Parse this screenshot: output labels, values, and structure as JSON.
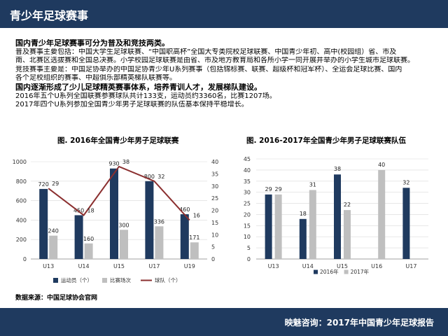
{
  "header": {
    "title": "青少年足球赛事"
  },
  "body": {
    "lines": [
      {
        "text": "国内青少年足球赛事可分为普及和竞技两类。",
        "bold": true
      },
      {
        "text": "普及赛事主要包括：中国大学生足球联赛、“中国职高杯”全国大专类院校足球联赛、中国青少年初、高中(校园组）省、市及",
        "bold": false
      },
      {
        "text": "南、北赛区选拔赛和全国总决赛。小学校园足球联赛是由省、市及地方教育局和各所小学一同开展并举办的小学生城市足球联赛。",
        "bold": false
      },
      {
        "text": "竞技赛事主要是：中国足协举办的中国足协青少年U系列赛事（包括锦标赛、联赛、超级杯和冠军杯）、全运会足球比赛、国内",
        "bold": false
      },
      {
        "text": "各个足校组织的赛事、中超俱乐部精英梯队联赛等。",
        "bold": false
      },
      {
        "text": "国内逐渐形成了少儿足球精英赛事体系，培养青训人才，发展梯队建设。",
        "bold": true
      },
      {
        "text": "2016年五个U系列全国联赛参赛球队共计133支，运动员约3360名，比赛1207场。",
        "bold": false
      },
      {
        "text": "2017年四个U系列参加全国青少年男子足球联赛的队伍基本保持平稳增长。",
        "bold": false
      }
    ]
  },
  "chart_data": [
    {
      "type": "bar",
      "title": "图. 2016年全国青少年男子足球联赛",
      "categories": [
        "U13",
        "U14",
        "U15",
        "U17",
        "U19"
      ],
      "series": [
        {
          "name": "运动员（个）",
          "type": "bar",
          "axis": "left",
          "color": "#1f3a5f",
          "values": [
            720,
            450,
            930,
            800,
            460
          ]
        },
        {
          "name": "比赛场次",
          "type": "bar",
          "axis": "left",
          "color": "#bfbfbf",
          "values": [
            240,
            160,
            300,
            336,
            171
          ]
        },
        {
          "name": "球队（个）",
          "type": "line",
          "axis": "right",
          "color": "#8b2f2f",
          "values": [
            29,
            18,
            38,
            32,
            16
          ]
        }
      ],
      "y_left": {
        "min": 0,
        "max": 1000,
        "ticks": [
          "0",
          "200",
          "400",
          "600",
          "800",
          "1000"
        ]
      },
      "y_right": {
        "min": 0,
        "max": 40,
        "ticks": [
          "0",
          "5",
          "10",
          "15",
          "20",
          "25",
          "30",
          "35",
          "40"
        ]
      },
      "grid": true,
      "legend": "bottom"
    },
    {
      "type": "bar",
      "title": "图. 2016-2017年全国青少年男子足球联赛队伍",
      "categories": [
        "U13",
        "U14",
        "U15",
        "U16",
        "U17"
      ],
      "series": [
        {
          "name": "2016年",
          "color": "#1f3a5f",
          "values": [
            29,
            18,
            38,
            null,
            32
          ]
        },
        {
          "name": "2017年",
          "color": "#bfbfbf",
          "values": [
            29,
            31,
            22,
            40,
            null
          ]
        }
      ],
      "y": {
        "min": 0,
        "max": 45,
        "ticks": [
          "0",
          "5",
          "10",
          "15",
          "20",
          "25",
          "30",
          "35",
          "40",
          "45"
        ]
      },
      "grid": true,
      "legend": "bottom"
    }
  ],
  "source": "数据来源：中国足球协会官网",
  "footer": {
    "text": "映魅咨询：2017年中国青少年足球报告"
  }
}
